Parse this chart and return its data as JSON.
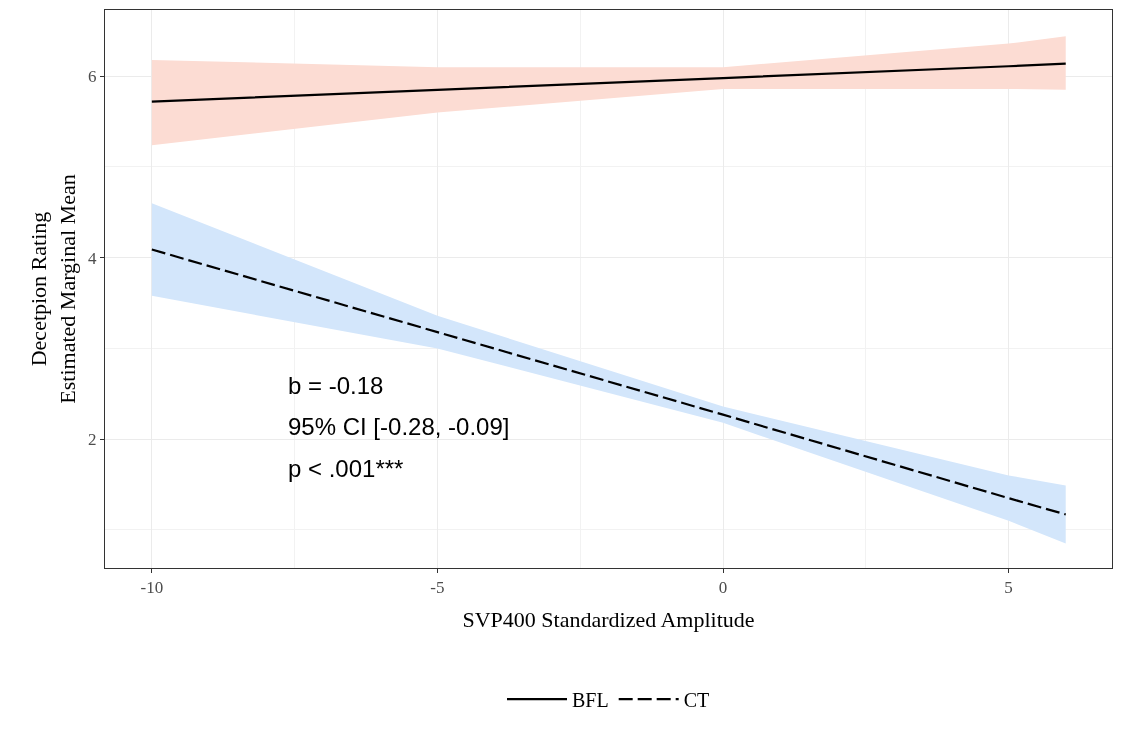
{
  "chart_data": {
    "type": "line",
    "xlabel": "SVP400 Standardized Amplitude",
    "ylabel": "Decetpion Rating\nEstimated Marginal Mean",
    "x": [
      -10,
      -5,
      0,
      5,
      6
    ],
    "series": [
      {
        "name": "BFL",
        "color": "#000000",
        "values": [
          5.72,
          5.85,
          5.98,
          6.11,
          6.14
        ],
        "lower": [
          5.24,
          5.6,
          5.86,
          5.86,
          5.85
        ],
        "upper": [
          6.18,
          6.1,
          6.1,
          6.36,
          6.44
        ],
        "line_style": "solid"
      },
      {
        "name": "CT",
        "color": "#000000",
        "values": [
          4.09,
          3.18,
          2.27,
          1.35,
          1.17
        ],
        "lower": [
          3.58,
          3.0,
          2.18,
          1.1,
          0.85
        ],
        "upper": [
          4.6,
          3.36,
          2.36,
          1.6,
          1.49
        ],
        "line_style": "dashed"
      }
    ],
    "xlim": [
      -10.82,
      6.81
    ],
    "ylim": [
      0.58,
      6.73
    ],
    "xticks": [
      -10,
      {
        "value": -7.5,
        "label": null
      },
      -5,
      {
        "value": -2.5,
        "label": null
      },
      0,
      {
        "value": 2.5,
        "label": null
      },
      5
    ],
    "yticks": [
      {
        "value": 1,
        "label": null
      },
      2,
      {
        "value": 3,
        "label": null
      },
      4,
      {
        "value": 5,
        "label": null
      },
      6
    ],
    "grid": true,
    "legend": "bottom",
    "annotations": [
      "b = -0.18",
      "95% CI [-0.28, -0.09]",
      "p < .001***"
    ]
  }
}
